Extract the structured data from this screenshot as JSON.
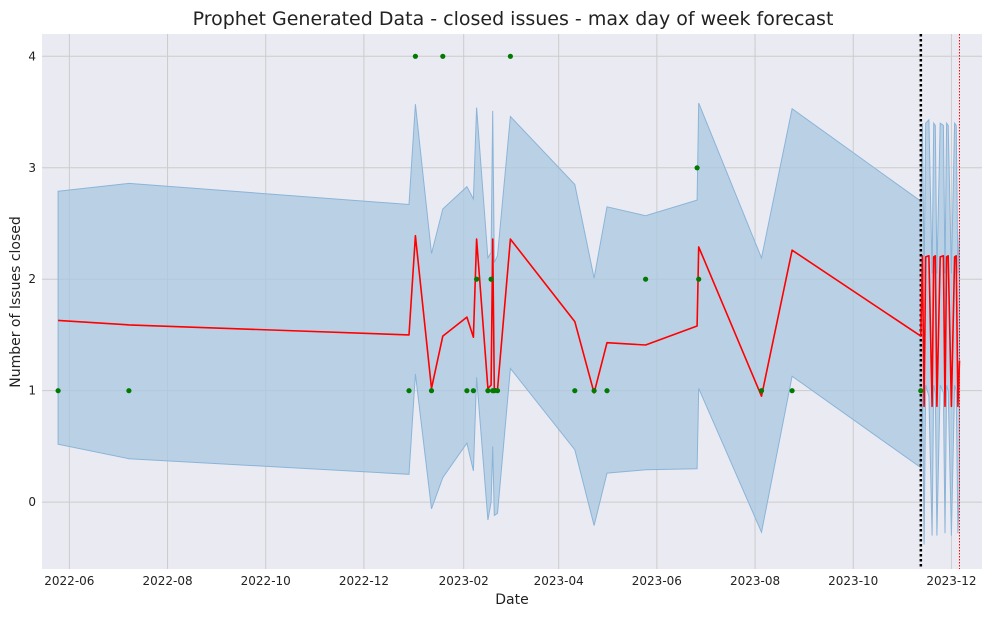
{
  "chart_data": {
    "type": "line",
    "title": "Prophet Generated Data - closed issues - max day of week forecast",
    "xlabel": "Date",
    "ylabel": "Number of Issues closed",
    "x_type": "date",
    "xlim": [
      "2022-05-15",
      "2023-12-20"
    ],
    "ylim": [
      -0.6,
      4.2
    ],
    "grid": true,
    "x_ticks": [
      "2022-06-01",
      "2022-08-01",
      "2022-10-01",
      "2022-12-01",
      "2023-02-01",
      "2023-04-01",
      "2023-06-01",
      "2023-08-01",
      "2023-10-01",
      "2023-12-01"
    ],
    "x_tick_labels": [
      "2022-06",
      "2022-08",
      "2022-10",
      "2022-12",
      "2023-02",
      "2023-04",
      "2023-06",
      "2023-08",
      "2023-10",
      "2023-12"
    ],
    "y_ticks": [
      0,
      1,
      2,
      3,
      4
    ],
    "colors": {
      "background": "#eaeaf2",
      "grid": "#cccccc",
      "forecast": "#ff0000",
      "band_fill": "#aac8e0",
      "band_stroke": "#8ab4d8",
      "observed": "#007a00",
      "vline_black": "#000000",
      "vline_red": "#ff0000"
    },
    "series": [
      {
        "kind": "points",
        "x": [
          "2022-05-25",
          "2022-07-08",
          "2022-12-29",
          "2023-01-02",
          "2023-01-12",
          "2023-01-19",
          "2023-02-03",
          "2023-02-07",
          "2023-02-09",
          "2023-02-16",
          "2023-02-18",
          "2023-02-19",
          "2023-02-20",
          "2023-02-22",
          "2023-03-02",
          "2023-04-11",
          "2023-04-23",
          "2023-05-01",
          "2023-05-25",
          "2023-06-26",
          "2023-06-27",
          "2023-08-05",
          "2023-08-24",
          "2023-11-12"
        ],
        "y": [
          1,
          1,
          1,
          4,
          1,
          4,
          1,
          1,
          2,
          1,
          2,
          1,
          1,
          1,
          4,
          1,
          1,
          1,
          2,
          3,
          2,
          1,
          1,
          1
        ]
      },
      {
        "kind": "line",
        "x": [
          "2022-05-25",
          "2022-07-08",
          "2022-12-29",
          "2023-01-02",
          "2023-01-12",
          "2023-01-19",
          "2023-02-03",
          "2023-02-07",
          "2023-02-09",
          "2023-02-16",
          "2023-02-18",
          "2023-02-19",
          "2023-02-20",
          "2023-02-22",
          "2023-03-02",
          "2023-04-11",
          "2023-04-23",
          "2023-05-01",
          "2023-05-25",
          "2023-06-26",
          "2023-06-27",
          "2023-08-05",
          "2023-08-24",
          "2023-11-12",
          "2023-11-13",
          "2023-11-14",
          "2023-11-15",
          "2023-11-17",
          "2023-11-19",
          "2023-11-20",
          "2023-11-21",
          "2023-11-22",
          "2023-11-24",
          "2023-11-26",
          "2023-11-27",
          "2023-11-28",
          "2023-11-29",
          "2023-12-01",
          "2023-12-03",
          "2023-12-04",
          "2023-12-05",
          "2023-12-06"
        ],
        "y": [
          1.63,
          1.59,
          1.5,
          2.39,
          1.02,
          1.49,
          1.66,
          1.48,
          2.36,
          1.02,
          1.05,
          2.36,
          1.02,
          1.01,
          2.36,
          1.62,
          0.98,
          1.43,
          1.41,
          1.58,
          2.29,
          0.95,
          2.26,
          1.49,
          2.21,
          0.86,
          2.2,
          2.21,
          0.86,
          2.2,
          2.21,
          0.86,
          2.2,
          2.21,
          0.86,
          2.2,
          2.21,
          0.86,
          2.2,
          2.21,
          0.86,
          1.27
        ]
      },
      {
        "kind": "band",
        "x": [
          "2022-05-25",
          "2022-07-08",
          "2022-12-29",
          "2023-01-02",
          "2023-01-12",
          "2023-01-19",
          "2023-02-03",
          "2023-02-07",
          "2023-02-09",
          "2023-02-16",
          "2023-02-18",
          "2023-02-19",
          "2023-02-20",
          "2023-02-22",
          "2023-03-02",
          "2023-04-11",
          "2023-04-23",
          "2023-05-01",
          "2023-05-25",
          "2023-06-26",
          "2023-06-27",
          "2023-08-05",
          "2023-08-24",
          "2023-11-12",
          "2023-11-13",
          "2023-11-14",
          "2023-11-15",
          "2023-11-17",
          "2023-11-19",
          "2023-11-20",
          "2023-11-21",
          "2023-11-22",
          "2023-11-24",
          "2023-11-26",
          "2023-11-27",
          "2023-11-28",
          "2023-11-29",
          "2023-12-01",
          "2023-12-03",
          "2023-12-04",
          "2023-12-05",
          "2023-12-06"
        ],
        "lower": [
          0.52,
          0.39,
          0.25,
          1.15,
          -0.06,
          0.22,
          0.53,
          0.28,
          1.12,
          -0.16,
          0.0,
          0.5,
          -0.12,
          -0.1,
          1.2,
          0.47,
          -0.21,
          0.26,
          0.29,
          0.3,
          1.02,
          -0.27,
          1.13,
          0.31,
          1.0,
          -0.38,
          1.05,
          0.95,
          -0.3,
          1.05,
          0.98,
          -0.3,
          1.05,
          0.98,
          -0.28,
          1.05,
          1.0,
          -0.3,
          1.05,
          1.0,
          -0.28,
          0.1
        ],
        "upper": [
          2.79,
          2.86,
          2.67,
          3.57,
          2.23,
          2.63,
          2.83,
          2.72,
          3.54,
          2.19,
          2.24,
          3.51,
          2.15,
          2.21,
          3.46,
          2.85,
          2.01,
          2.65,
          2.57,
          2.71,
          3.58,
          2.19,
          3.53,
          2.7,
          3.4,
          2.0,
          3.4,
          3.43,
          2.05,
          3.4,
          3.38,
          2.05,
          3.4,
          3.38,
          2.05,
          3.4,
          3.38,
          2.05,
          3.4,
          3.38,
          2.05,
          2.45
        ]
      }
    ],
    "vlines": [
      {
        "x": "2023-11-12",
        "style": "dotted",
        "color": "#000000"
      },
      {
        "x": "2023-12-06",
        "style": "dotted",
        "color": "#ff0000"
      }
    ]
  }
}
